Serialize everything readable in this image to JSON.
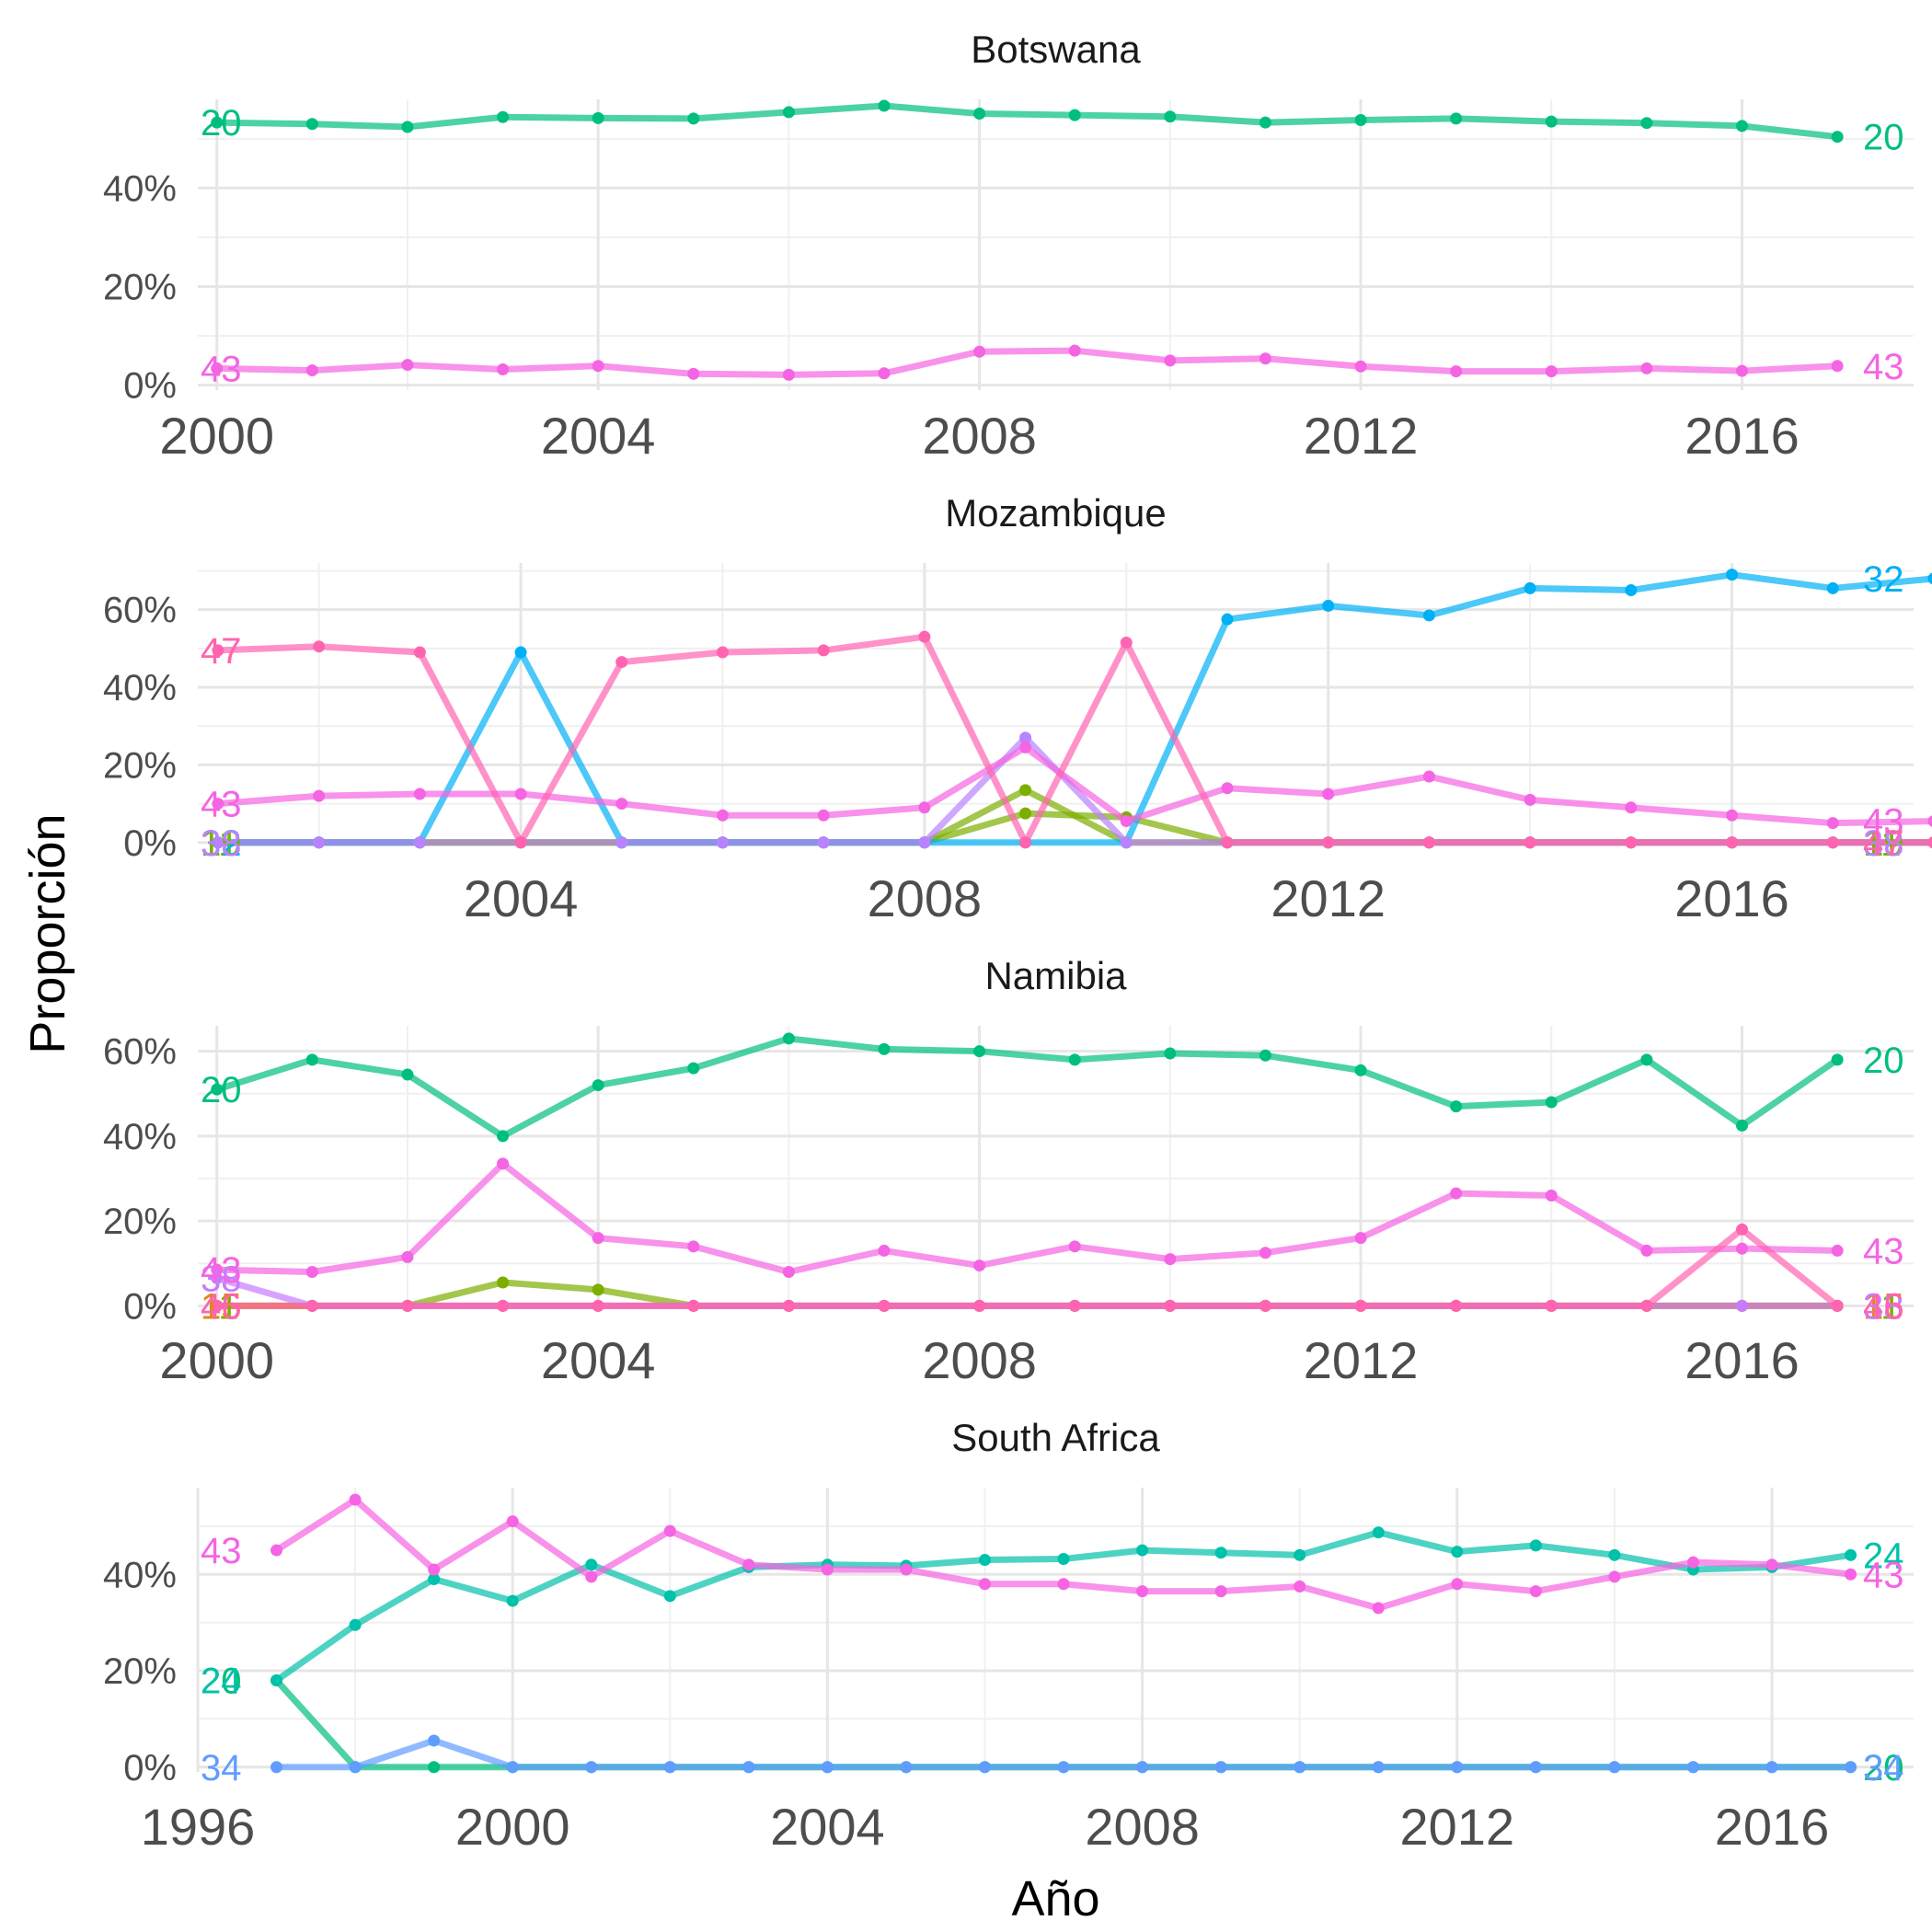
{
  "chart_data": [
    {
      "type": "line",
      "title": "Botswana",
      "xlim": [
        1999.8,
        2017.8
      ],
      "ylim": [
        -0.01,
        0.58
      ],
      "x_ticks": [
        2000,
        2004,
        2008,
        2012,
        2016
      ],
      "x_tick_labels": [
        "2000",
        "2004",
        "2008",
        "2012",
        "2016"
      ],
      "y_ticks": [
        0,
        0.2,
        0.4
      ],
      "y_tick_labels": [
        "0%",
        "20%",
        "40%"
      ],
      "x": [
        2000,
        2001,
        2002,
        2003,
        2004,
        2005,
        2006,
        2007,
        2008,
        2009,
        2010,
        2011,
        2012,
        2013,
        2014,
        2015,
        2016,
        2017
      ],
      "series": [
        {
          "name": "20",
          "color": "#00BF7D",
          "start_label": "20",
          "end_label": "20",
          "values": [
            0.533,
            0.53,
            0.524,
            0.544,
            0.542,
            0.541,
            0.554,
            0.567,
            0.551,
            0.548,
            0.545,
            0.533,
            0.538,
            0.541,
            0.535,
            0.532,
            0.526,
            0.504
          ]
        },
        {
          "name": "43",
          "color": "#F564E3",
          "start_label": "43",
          "end_label": "43",
          "values": [
            0.034,
            0.03,
            0.041,
            0.032,
            0.039,
            0.023,
            0.021,
            0.024,
            0.068,
            0.07,
            0.05,
            0.054,
            0.038,
            0.028,
            0.028,
            0.034,
            0.029,
            0.039
          ]
        }
      ]
    },
    {
      "type": "line",
      "title": "Mozambique",
      "xlim": [
        2000.8,
        2017.8
      ],
      "ylim": [
        -0.01,
        0.72
      ],
      "x_ticks": [
        2004,
        2008,
        2012,
        2016
      ],
      "x_tick_labels": [
        "2004",
        "2008",
        "2012",
        "2016"
      ],
      "y_ticks": [
        0,
        0.2,
        0.4,
        0.6
      ],
      "y_tick_labels": [
        "0%",
        "20%",
        "40%",
        "60%"
      ],
      "x": [
        2001,
        2002,
        2003,
        2004,
        2005,
        2006,
        2007,
        2008,
        2009,
        2010,
        2011,
        2012,
        2013,
        2014,
        2015,
        2016,
        2017,
        2018
      ],
      "series": [
        {
          "name": "11",
          "color": "#7CAE00",
          "start_label": "11",
          "end_label": "11",
          "values": [
            0,
            0,
            0,
            0,
            0,
            0,
            0,
            0,
            0.075,
            0.065,
            0,
            0,
            0,
            0,
            0,
            0,
            0,
            0
          ]
        },
        {
          "name": "19",
          "color": "#7CAE00",
          "start_label": "19",
          "end_label": "19",
          "values": [
            0,
            0,
            0,
            0,
            0,
            0,
            0,
            0,
            0.135,
            0,
            0,
            0,
            0,
            0,
            0,
            0,
            0,
            0
          ]
        },
        {
          "name": "32",
          "color": "#00B0F6",
          "start_label": "32",
          "end_label": "32",
          "values": [
            0,
            0,
            0,
            0.49,
            0,
            0,
            0,
            0,
            0,
            0,
            0.575,
            0.61,
            0.585,
            0.655,
            0.65,
            0.69,
            0.655,
            0.68
          ]
        },
        {
          "name": "38",
          "color": "#B983FF",
          "start_label": "38",
          "end_label": "38",
          "values": [
            0,
            0,
            0,
            0,
            0,
            0,
            0,
            0,
            0.27,
            0,
            0,
            0,
            0,
            0,
            0,
            0,
            0,
            0
          ]
        },
        {
          "name": "43",
          "color": "#F564E3",
          "start_label": "43",
          "end_label": "43",
          "values": [
            0.1,
            0.12,
            0.125,
            0.125,
            0.1,
            0.07,
            0.07,
            0.09,
            0.245,
            0.055,
            0.14,
            0.125,
            0.17,
            0.11,
            0.09,
            0.07,
            0.05,
            0.055
          ]
        },
        {
          "name": "47",
          "color": "#FF64B0",
          "start_label": "47",
          "end_label": "47",
          "values": [
            0.495,
            0.505,
            0.49,
            0,
            0.465,
            0.49,
            0.495,
            0.53,
            0,
            0.515,
            0,
            0,
            0,
            0,
            0,
            0,
            0,
            0
          ]
        }
      ]
    },
    {
      "type": "line",
      "title": "Namibia",
      "xlim": [
        1999.8,
        2017.8
      ],
      "ylim": [
        -0.01,
        0.66
      ],
      "x_ticks": [
        2000,
        2004,
        2008,
        2012,
        2016
      ],
      "x_tick_labels": [
        "2000",
        "2004",
        "2008",
        "2012",
        "2016"
      ],
      "y_ticks": [
        0,
        0.2,
        0.4,
        0.6
      ],
      "y_tick_labels": [
        "0%",
        "20%",
        "40%",
        "60%"
      ],
      "x": [
        2000,
        2001,
        2002,
        2003,
        2004,
        2005,
        2006,
        2007,
        2008,
        2009,
        2010,
        2011,
        2012,
        2013,
        2014,
        2015,
        2016,
        2017
      ],
      "series": [
        {
          "name": "11",
          "color": "#7CAE00",
          "start_label": "11",
          "end_label": "11",
          "values": [
            0,
            0,
            0,
            0.055,
            0.038,
            0,
            0,
            0,
            0,
            0,
            0,
            0,
            0,
            0,
            0,
            0,
            0,
            0
          ]
        },
        {
          "name": "15",
          "color": "#E68613",
          "start_label": "15",
          "end_label": "15",
          "values": [
            0,
            0,
            0,
            0,
            0,
            0,
            0,
            0,
            0,
            0,
            0,
            0,
            0,
            0,
            0,
            0,
            0,
            0
          ]
        },
        {
          "name": "20",
          "color": "#00BF7D",
          "start_label": "20",
          "end_label": "20",
          "values": [
            0.51,
            0.58,
            0.545,
            0.4,
            0.52,
            0.56,
            0.63,
            0.605,
            0.6,
            0.58,
            0.595,
            0.59,
            0.555,
            0.47,
            0.48,
            0.58,
            0.425,
            0.58
          ]
        },
        {
          "name": "38",
          "color": "#C77CFF",
          "start_label": "38",
          "end_label": "38",
          "values": [
            0.065,
            0,
            0,
            0,
            0,
            0,
            0,
            0,
            0,
            0,
            0,
            0,
            0,
            0,
            0,
            0,
            0,
            0
          ]
        },
        {
          "name": "43",
          "color": "#F564E3",
          "start_label": "43",
          "end_label": "43",
          "values": [
            0.085,
            0.08,
            0.115,
            0.335,
            0.16,
            0.14,
            0.08,
            0.13,
            0.095,
            0.14,
            0.11,
            0.125,
            0.16,
            0.265,
            0.26,
            0.13,
            0.135,
            0.13
          ]
        },
        {
          "name": "46",
          "color": "#FF64B0",
          "start_label": "46",
          "end_label": "46",
          "values": [
            0,
            0,
            0,
            0,
            0,
            0,
            0,
            0,
            0,
            0,
            0,
            0,
            0,
            0,
            0,
            0,
            0.18,
            0
          ]
        }
      ]
    },
    {
      "type": "line",
      "title": "South Africa",
      "xlim": [
        1996,
        2017.8
      ],
      "ylim": [
        -0.01,
        0.58
      ],
      "x_ticks": [
        1996,
        2000,
        2004,
        2008,
        2012,
        2016
      ],
      "x_tick_labels": [
        "1996",
        "2000",
        "2004",
        "2008",
        "2012",
        "2016"
      ],
      "y_ticks": [
        0,
        0.2,
        0.4
      ],
      "y_tick_labels": [
        "0%",
        "20%",
        "40%"
      ],
      "x": [
        1997,
        1998,
        1999,
        2000,
        2001,
        2002,
        2003,
        2004,
        2005,
        2006,
        2007,
        2008,
        2009,
        2010,
        2011,
        2012,
        2013,
        2014,
        2015,
        2016,
        2017
      ],
      "series": [
        {
          "name": "20",
          "color": "#00BF7D",
          "start_label": "20",
          "end_label": "20",
          "values": [
            0.18,
            0,
            0,
            0,
            0,
            0,
            0,
            0,
            0,
            0,
            0,
            0,
            0,
            0,
            0,
            0,
            0,
            0,
            0,
            0,
            0
          ]
        },
        {
          "name": "24",
          "color": "#00C1A9",
          "start_label": "24",
          "end_label": "24",
          "values": [
            0.18,
            0.295,
            0.39,
            0.345,
            0.42,
            0.355,
            0.415,
            0.42,
            0.418,
            0.43,
            0.432,
            0.45,
            0.445,
            0.44,
            0.487,
            0.447,
            0.46,
            0.44,
            0.41,
            0.415,
            0.44
          ]
        },
        {
          "name": "34",
          "color": "#619CFF",
          "start_label": "34",
          "end_label": "34",
          "values": [
            0,
            0,
            0.055,
            0,
            0,
            0,
            0,
            0,
            0,
            0,
            0,
            0,
            0,
            0,
            0,
            0,
            0,
            0,
            0,
            0,
            0
          ]
        },
        {
          "name": "43",
          "color": "#F564E3",
          "start_label": "43",
          "end_label": "43",
          "values": [
            0.45,
            0.555,
            0.41,
            0.51,
            0.395,
            0.49,
            0.42,
            0.41,
            0.41,
            0.38,
            0.38,
            0.365,
            0.365,
            0.375,
            0.33,
            0.38,
            0.365,
            0.395,
            0.425,
            0.42,
            0.4
          ]
        }
      ]
    }
  ],
  "axes": {
    "x_title": "Año",
    "y_title": "Proporción"
  }
}
